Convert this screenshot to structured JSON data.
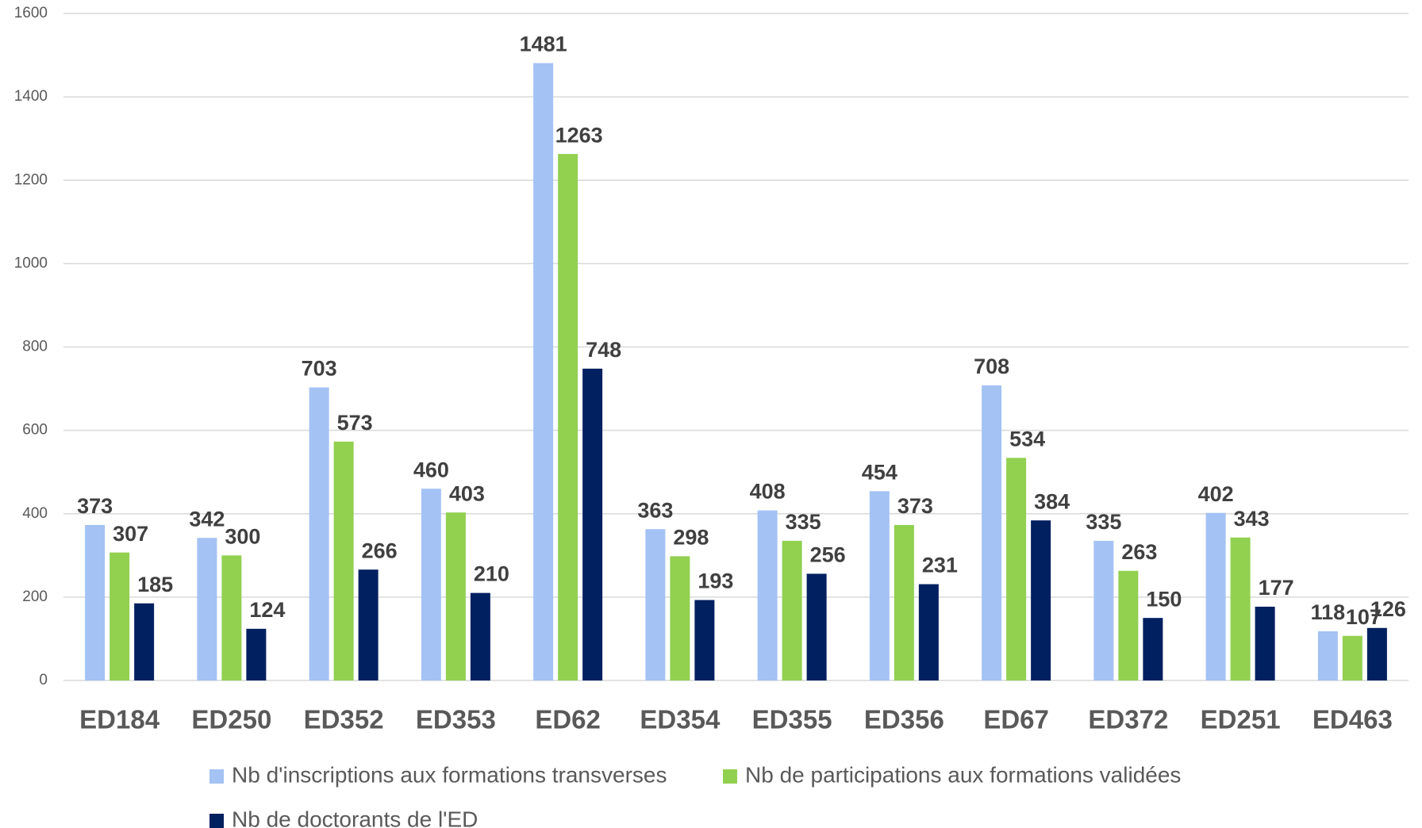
{
  "chart_data": {
    "type": "bar",
    "categories": [
      "ED184",
      "ED250",
      "ED352",
      "ED353",
      "ED62",
      "ED354",
      "ED355",
      "ED356",
      "ED67",
      "ED372",
      "ED251",
      "ED463"
    ],
    "series": [
      {
        "name": "Nb d'inscriptions aux formations transverses",
        "color": "#a4c2f4",
        "values": [
          373,
          342,
          703,
          460,
          1481,
          363,
          408,
          454,
          708,
          335,
          402,
          118
        ]
      },
      {
        "name": "Nb de participations aux formations validées",
        "color": "#92d050",
        "values": [
          307,
          300,
          573,
          403,
          1263,
          298,
          335,
          373,
          534,
          263,
          343,
          107
        ]
      },
      {
        "name": "Nb de doctorants de l'ED",
        "color": "#002060",
        "values": [
          185,
          124,
          266,
          210,
          748,
          193,
          256,
          231,
          384,
          150,
          177,
          126
        ]
      }
    ],
    "ylim": [
      0,
      1600
    ],
    "yticks": [
      0,
      200,
      400,
      600,
      800,
      1000,
      1200,
      1400,
      1600
    ],
    "grid": true
  }
}
